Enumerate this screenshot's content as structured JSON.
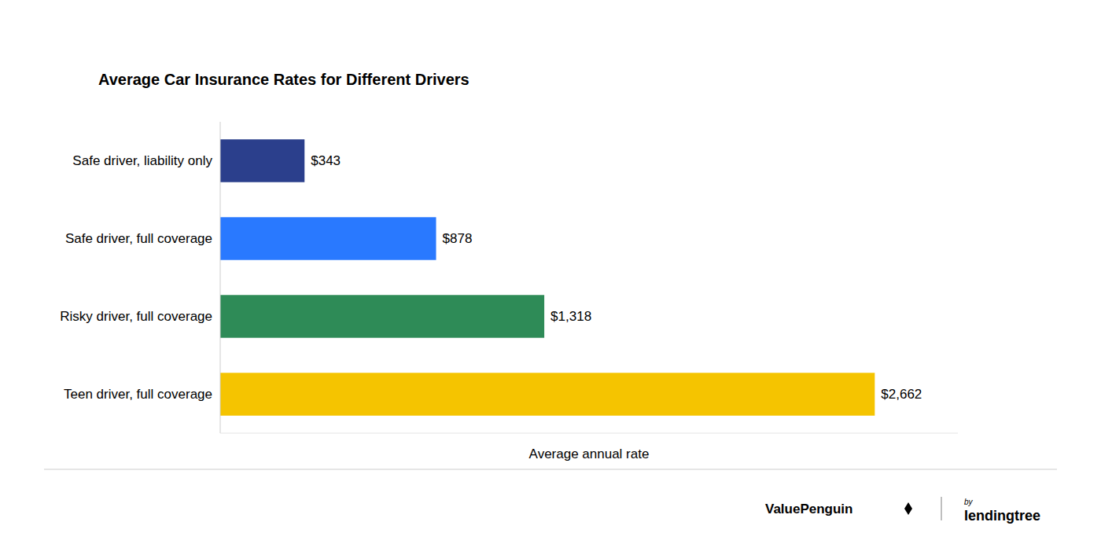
{
  "chart_data": {
    "type": "bar",
    "orientation": "horizontal",
    "title": "Average Car Insurance Rates for Different Drivers",
    "categories": [
      "Teen driver, full coverage",
      "Risky driver, full coverage",
      "Safe driver, full coverage",
      "Safe driver, liability only"
    ],
    "values": [
      2662,
      1318,
      878,
      343
    ],
    "value_labels": [
      "$2,662",
      "$1,318",
      "$878",
      "$343"
    ],
    "colors": [
      "#F5C400",
      "#2E8B57",
      "#2979FF",
      "#2B3F8C"
    ],
    "x_label": "Average annual rate",
    "xlim": [
      0,
      3000
    ],
    "tick_labels": "y",
    "data_labels": true,
    "grid": false,
    "annotations": [
      "ValuePenguin",
      "by",
      "lendingtree"
    ]
  }
}
